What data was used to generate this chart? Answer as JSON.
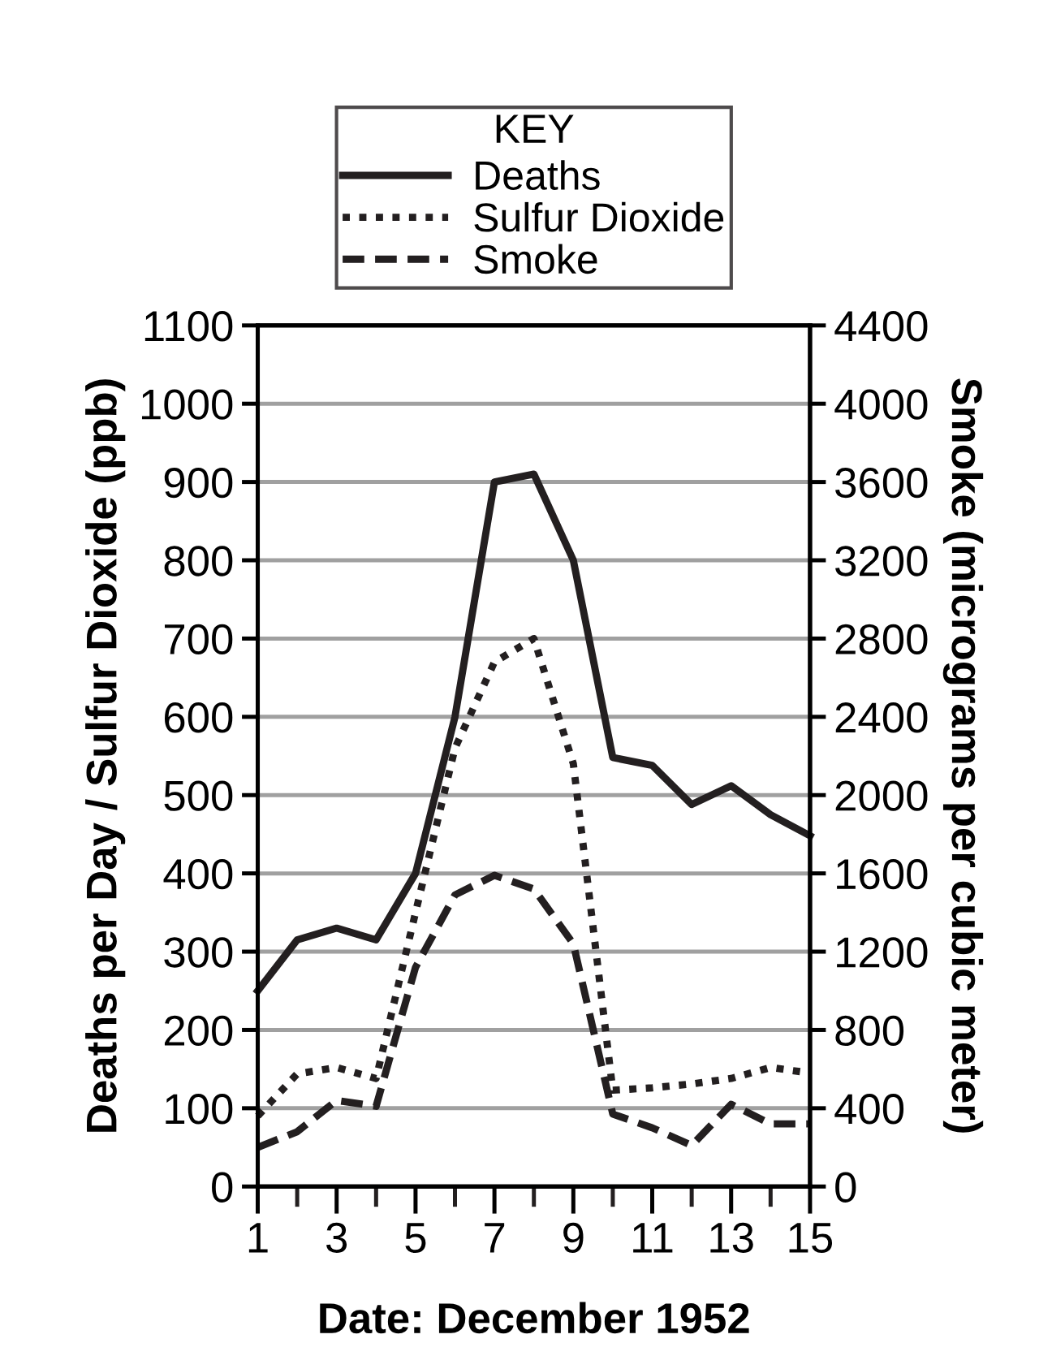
{
  "chart_data": {
    "type": "line",
    "xlabel": "Date: December 1952",
    "ylabel": "Deaths per Day / Sulfur Dioxide (ppb)",
    "y2label": "Smoke (micrograms per cubic meter)",
    "legend_title": "KEY",
    "legend": "top",
    "x": [
      1,
      2,
      3,
      4,
      5,
      6,
      7,
      8,
      9,
      10,
      11,
      12,
      13,
      14,
      15
    ],
    "series": [
      {
        "name": "Deaths",
        "color": "#231f20",
        "line_style": "solid",
        "values": [
          250,
          315,
          330,
          315,
          400,
          600,
          900,
          910,
          800,
          548,
          538,
          488,
          512,
          475,
          448
        ]
      },
      {
        "name": "Sulfur Dioxide",
        "color": "#231f20",
        "line_style": "dotted",
        "values": [
          90,
          144,
          152,
          138,
          350,
          560,
          670,
          700,
          540,
          123,
          126,
          131,
          138,
          152,
          145
        ]
      },
      {
        "name": "Smoke",
        "color": "#231f20",
        "line_style": "dashed",
        "axis": "y2",
        "values": [
          200,
          280,
          440,
          410,
          1120,
          1490,
          1590,
          1520,
          1240,
          370,
          300,
          210,
          420,
          320,
          320
        ]
      }
    ],
    "xlim": [
      1,
      15
    ],
    "xticks": [
      1,
      {
        "value": 2,
        "label": null
      },
      3,
      {
        "value": 4,
        "label": null
      },
      5,
      {
        "value": 6,
        "label": null
      },
      7,
      {
        "value": 8,
        "label": null
      },
      9,
      {
        "value": 10,
        "label": null
      },
      11,
      {
        "value": 12,
        "label": null
      },
      13,
      {
        "value": 14,
        "label": null
      },
      15
    ],
    "ylim": [
      0,
      1100
    ],
    "yticks": [
      0,
      100,
      200,
      300,
      400,
      500,
      600,
      700,
      800,
      900,
      1000,
      1100
    ],
    "y2lim": [
      0,
      4400
    ],
    "y2ticks": [
      0,
      400,
      800,
      1200,
      1600,
      2000,
      2400,
      2800,
      3200,
      3600,
      4000,
      4400
    ],
    "grid": "y",
    "marker": "none"
  }
}
